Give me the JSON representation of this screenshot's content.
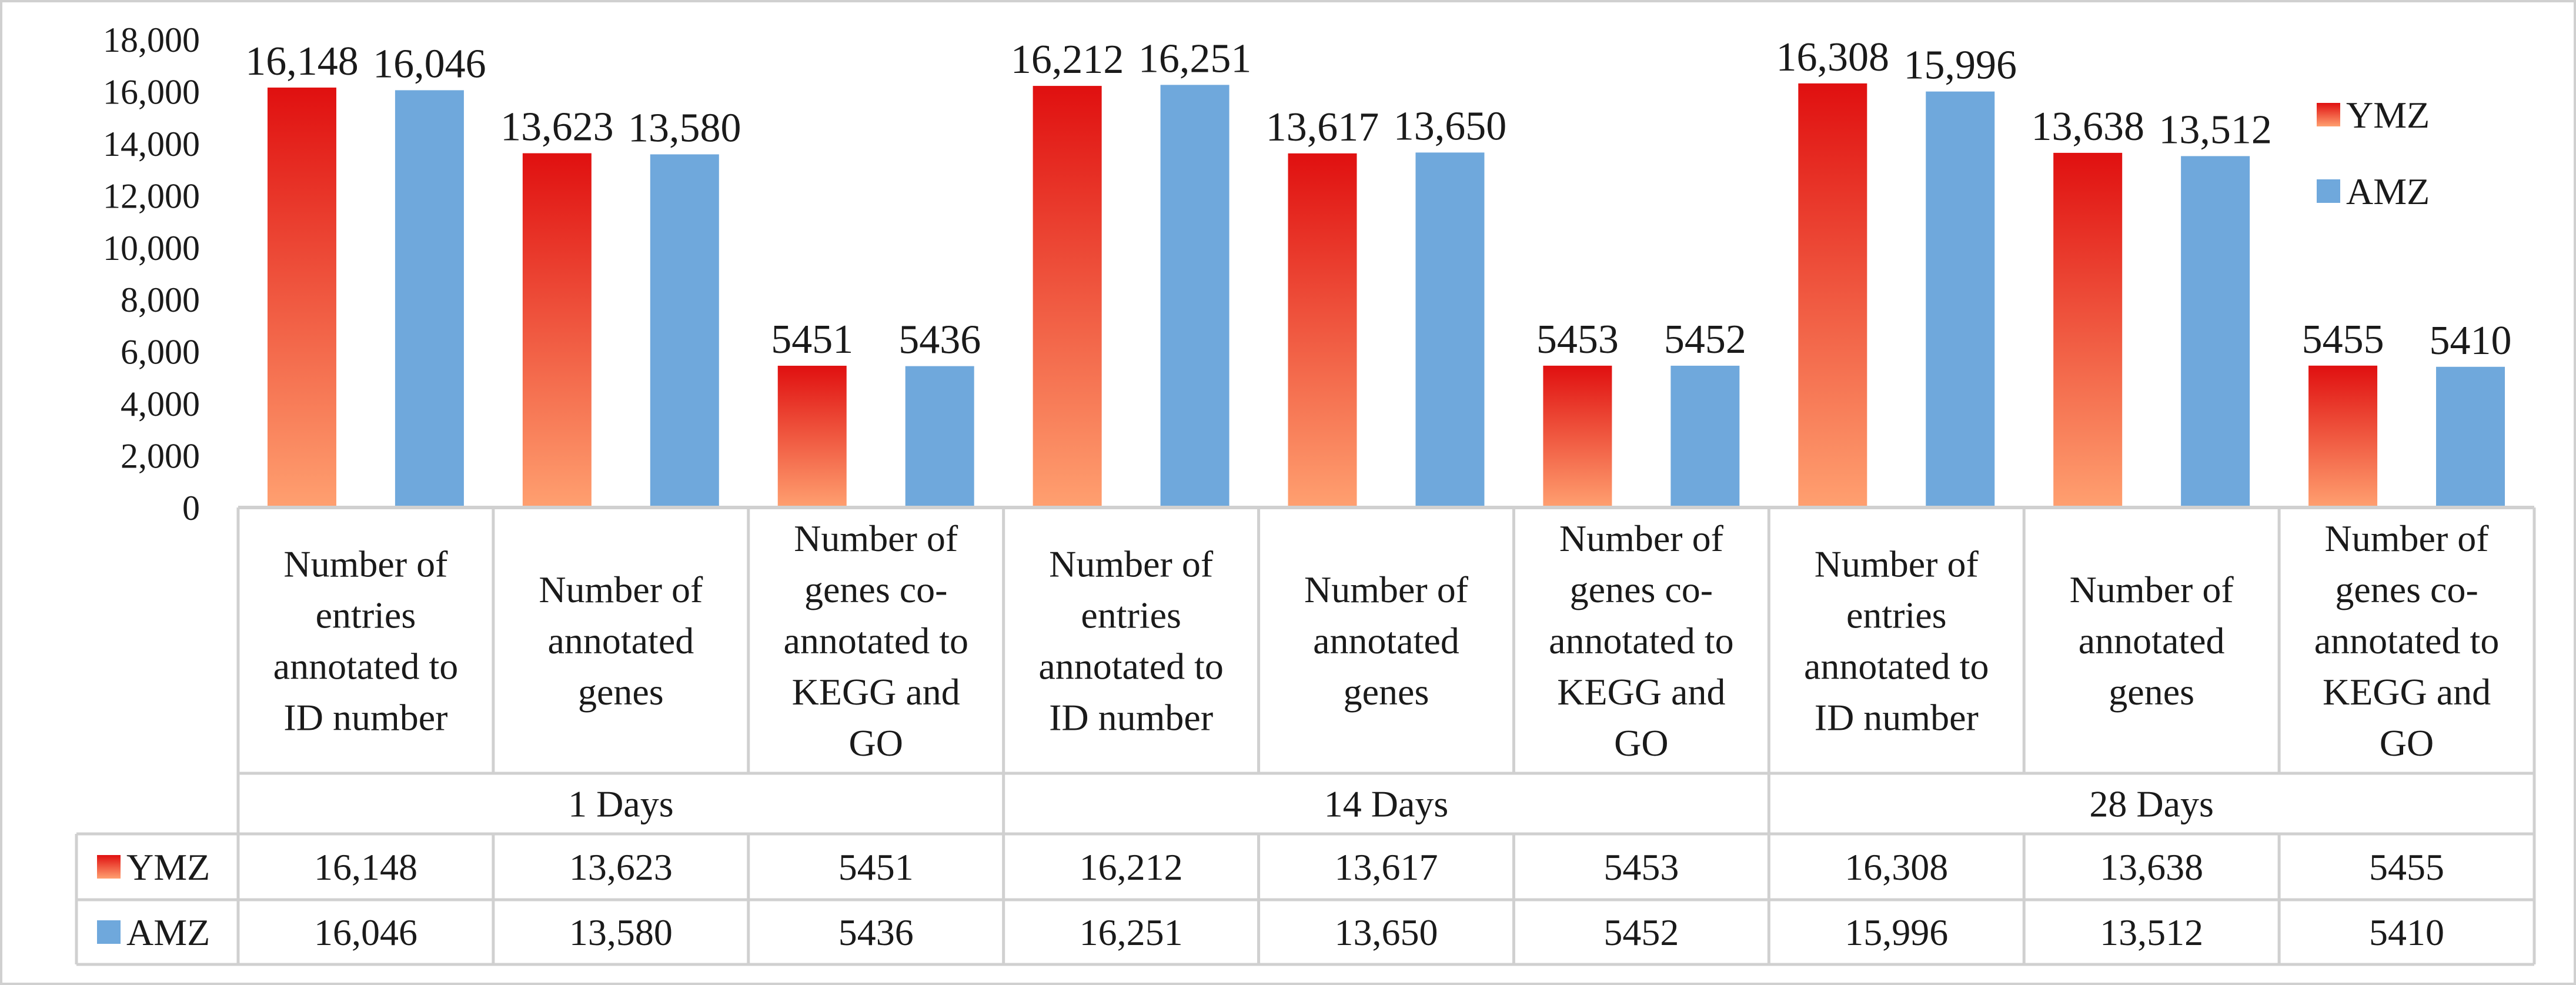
{
  "chart_data": {
    "type": "bar",
    "groups": [
      {
        "label": "1 Days",
        "categories": [
          "Number of entries annotated to ID number",
          "Number of annotated genes",
          "Number of genes co-annotated to KEGG and GO"
        ]
      },
      {
        "label": "14 Days",
        "categories": [
          "Number of entries annotated to ID number",
          "Number of annotated genes",
          "Number of genes co-annotated to KEGG and GO"
        ]
      },
      {
        "label": "28 Days",
        "categories": [
          "Number of entries annotated to ID number",
          "Number of annotated genes",
          "Number of genes co-annotated to KEGG and GO"
        ]
      }
    ],
    "category_lines": [
      [
        "Number of",
        "entries",
        "annotated to",
        "ID number"
      ],
      [
        "Number of",
        "annotated",
        "genes"
      ],
      [
        "Number of",
        "genes co-",
        "annotated to",
        "KEGG and",
        "GO"
      ]
    ],
    "series": [
      {
        "name": "YMZ",
        "values": [
          16148,
          13623,
          5451,
          16212,
          13617,
          5453,
          16308,
          13638,
          5455
        ],
        "labels": [
          "16,148",
          "13,623",
          "5451",
          "16,212",
          "13,617",
          "5453",
          "16,308",
          "13,638",
          "5455"
        ],
        "color_top": "#e01010",
        "color_bottom": "#ffa070"
      },
      {
        "name": "AMZ",
        "values": [
          16046,
          13580,
          5436,
          16251,
          13650,
          5452,
          15996,
          13512,
          5410
        ],
        "labels": [
          "16,046",
          "13,580",
          "5436",
          "16,251",
          "13,650",
          "5452",
          "15,996",
          "13,512",
          "5410"
        ],
        "color": "#6fa8dc"
      }
    ],
    "ylim": [
      0,
      18000
    ],
    "yticks": [
      0,
      2000,
      4000,
      6000,
      8000,
      10000,
      12000,
      14000,
      16000,
      18000
    ],
    "ytick_labels": [
      "0",
      "2,000",
      "4,000",
      "6,000",
      "8,000",
      "10,000",
      "12,000",
      "14,000",
      "16,000",
      "18,000"
    ],
    "legend": {
      "position": "right",
      "entries": [
        "YMZ",
        "AMZ"
      ]
    },
    "data_table": true,
    "grid": false
  }
}
